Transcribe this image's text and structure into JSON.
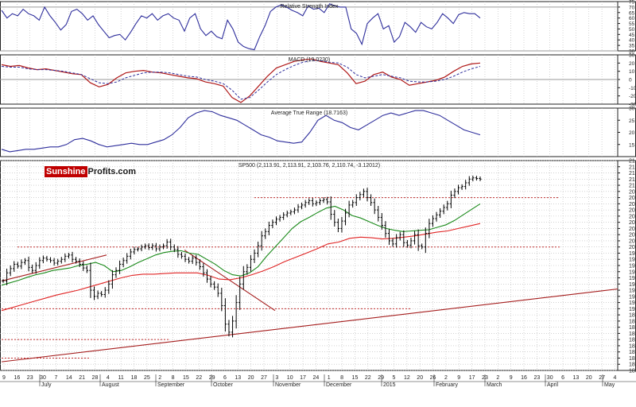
{
  "colors": {
    "rsi": "#2e2e9c",
    "macd": "#b01818",
    "signal": "#2e2e9c",
    "atr": "#2e2e9c",
    "bars": "#000000",
    "ma_short": "#1a8a1a",
    "ma_long": "#e02424",
    "trend": "#a51d1d",
    "level": "#c03030",
    "grid": "#b8b8b8"
  },
  "logo": {
    "part1": "Sunshine",
    "part2": "Profits.com"
  },
  "chart_data": [
    {
      "type": "line",
      "title": "Relative Strength Index",
      "ylim": [
        30,
        75
      ],
      "y_ticks": [
        "75",
        "70",
        "65",
        "60",
        "55",
        "50",
        "45",
        "40",
        "35",
        "30"
      ],
      "series": [
        {
          "values": [
            67,
            60,
            64,
            62,
            68,
            64,
            62,
            58,
            70,
            62,
            56,
            49,
            54,
            66,
            68,
            64,
            58,
            62,
            54,
            48,
            42,
            44,
            45,
            40,
            47,
            55,
            62,
            60,
            64,
            58,
            62,
            64,
            60,
            58,
            48,
            60,
            64,
            50,
            44,
            48,
            43,
            41,
            58,
            50,
            38,
            34,
            32,
            31,
            43,
            53,
            66,
            70,
            72,
            70,
            67,
            65,
            62,
            71,
            68,
            69,
            65,
            73,
            71,
            70,
            70,
            50,
            46,
            36,
            55,
            60,
            64,
            50,
            53,
            38,
            43,
            56,
            52,
            47,
            56,
            52,
            50,
            56,
            64,
            60,
            55,
            63,
            65,
            64,
            64,
            60
          ]
        }
      ]
    },
    {
      "type": "line",
      "title": "MACD (19.0230)",
      "ylim": [
        -30,
        30
      ],
      "y_ticks": [
        "30",
        "20",
        "10",
        "0",
        "-10",
        "-20",
        "-30"
      ],
      "series": [
        {
          "values": [
            18,
            16,
            17,
            14,
            12,
            13,
            11,
            9,
            7,
            6,
            -4,
            -9,
            -6,
            2,
            8,
            10,
            11,
            9,
            8,
            6,
            4,
            2,
            1,
            -3,
            -5,
            -8,
            -22,
            -28,
            -20,
            -8,
            4,
            14,
            18,
            22,
            24,
            25,
            22,
            20,
            18,
            8,
            -5,
            -2,
            6,
            9,
            3,
            0,
            -7,
            -5,
            -3,
            -1,
            3,
            10,
            16,
            19,
            20
          ]
        },
        {
          "values": [
            16,
            15,
            15,
            13,
            12,
            12,
            11,
            10,
            8,
            6,
            1,
            -4,
            -5,
            -3,
            2,
            5,
            8,
            9,
            9,
            8,
            6,
            4,
            3,
            0,
            -2,
            -5,
            -13,
            -24,
            -22,
            -13,
            -3,
            6,
            12,
            17,
            21,
            23,
            23,
            21,
            20,
            15,
            6,
            2,
            4,
            6,
            4,
            2,
            -2,
            -3,
            -3,
            -2,
            0,
            4,
            9,
            13,
            16
          ]
        }
      ]
    },
    {
      "type": "line",
      "title": "Average True Range (18.7163)",
      "ylim": [
        10,
        30
      ],
      "y_ticks": [
        "30",
        "25",
        "20",
        "15"
      ],
      "series": [
        {
          "values": [
            13,
            12,
            12.5,
            13,
            13,
            13.5,
            14,
            14,
            15,
            17,
            17.5,
            16.5,
            15,
            14,
            14.5,
            15,
            15.5,
            15,
            15,
            16,
            17,
            19,
            22,
            26,
            28,
            29,
            28.5,
            27,
            26,
            25,
            23,
            21,
            19,
            18,
            16.5,
            16,
            15.5,
            16,
            20,
            25,
            27,
            25,
            24,
            22,
            21,
            23,
            25,
            27,
            28,
            27,
            28,
            29,
            29,
            28,
            27,
            25,
            23,
            21,
            20,
            19
          ]
        }
      ]
    },
    {
      "type": "bar",
      "title": "SP500 (2,113.91, 2,113.91, 2,103.76, 2,110.74, -3.12012)",
      "ylim": [
        1800,
        2140
      ],
      "y_ticks": [
        "2140",
        "2130",
        "2120",
        "2110",
        "2100",
        "2090",
        "2080",
        "2070",
        "2060",
        "2050",
        "2040",
        "2030",
        "2020",
        "2010",
        "2000",
        "1990",
        "1980",
        "1970",
        "1960",
        "1950",
        "1940",
        "1930",
        "1920",
        "1910",
        "1900",
        "1890",
        "1880",
        "1870",
        "1860",
        "1850",
        "1840",
        "1830",
        "1820",
        "1810",
        "1800"
      ],
      "x_labels": [
        "9",
        "16",
        "23",
        "30",
        "7",
        "14",
        "21",
        "28",
        "4",
        "11",
        "18",
        "25",
        "2",
        "8",
        "15",
        "22",
        "29",
        "6",
        "13",
        "20",
        "27",
        "3",
        "10",
        "17",
        "24",
        "1",
        "8",
        "15",
        "22",
        "29",
        "5",
        "12",
        "20",
        "26",
        "2",
        "9",
        "17",
        "23",
        "2",
        "9",
        "16",
        "23",
        "30",
        "6",
        "13",
        "20",
        "27",
        "4"
      ],
      "month_labels": [
        "July",
        "August",
        "September",
        "October",
        "November",
        "December",
        "2015",
        "February",
        "March",
        "April",
        "May"
      ],
      "levels": [
        2080,
        2000,
        1900,
        1850,
        1820
      ],
      "closes": [
        1945,
        1958,
        1965,
        1972,
        1969,
        1975,
        1978,
        1967,
        1962,
        1970,
        1978,
        1982,
        1980,
        1978,
        1974,
        1977,
        1980,
        1985,
        1987,
        1980,
        1977,
        1972,
        1966,
        1962,
        1930,
        1920,
        1925,
        1923,
        1930,
        1940,
        1955,
        1962,
        1972,
        1978,
        1985,
        1992,
        1996,
        1997,
        2000,
        2002,
        1999,
        2002,
        1997,
        2000,
        2002,
        2008,
        2000,
        1996,
        1988,
        1985,
        1980,
        1977,
        1982,
        1975,
        1968,
        1958,
        1948,
        1940,
        1935,
        1925,
        1905,
        1875,
        1862,
        1880,
        1910,
        1940,
        1960,
        1967,
        1980,
        1990,
        2002,
        2018,
        2025,
        2035,
        2040,
        2045,
        2048,
        2052,
        2055,
        2057,
        2060,
        2065,
        2068,
        2072,
        2075,
        2070,
        2072,
        2075,
        2077,
        2073,
        2053,
        2040,
        2030,
        2042,
        2055,
        2068,
        2072,
        2080,
        2085,
        2090,
        2080,
        2072,
        2060,
        2048,
        2035,
        2022,
        2010,
        2005,
        2015,
        2020,
        2007,
        2003,
        2010,
        2020,
        2002,
        2000,
        2022,
        2038,
        2046,
        2052,
        2058,
        2064,
        2070,
        2084,
        2090,
        2096,
        2098,
        2104,
        2110,
        2112,
        2111,
        2110
      ],
      "ma_short": [
        1938,
        1942,
        1946,
        1951,
        1955,
        1958,
        1962,
        1964,
        1966,
        1970,
        1972,
        1975,
        1970,
        1960,
        1962,
        1968,
        1975,
        1981,
        1987,
        1991,
        1993,
        1994,
        1990,
        1988,
        1980,
        1972,
        1962,
        1955,
        1953,
        1958,
        1968,
        1985,
        2000,
        2015,
        2030,
        2041,
        2048,
        2056,
        2063,
        2066,
        2060,
        2051,
        2047,
        2041,
        2035,
        2030,
        2027,
        2025,
        2026,
        2027,
        2028,
        2032,
        2036,
        2043,
        2052,
        2061,
        2070
      ],
      "ma_long": [
        1897,
        1902,
        1907,
        1912,
        1917,
        1922,
        1926,
        1930,
        1935,
        1940,
        1945,
        1950,
        1954,
        1956,
        1956,
        1957,
        1958,
        1958,
        1958,
        1954,
        1948,
        1947,
        1950,
        1955,
        1961,
        1968,
        1976,
        1983,
        1990,
        1997,
        2005,
        2008,
        2014,
        2016,
        2015,
        2013,
        2014,
        2016,
        2018,
        2021,
        2024,
        2026,
        2030,
        2034,
        2038
      ],
      "trendlines": [
        {
          "values": [
            1945,
            1987
          ]
        },
        {
          "values": [
            1995,
            1897
          ]
        },
        {
          "values": [
            1814,
            1932
          ]
        }
      ]
    }
  ]
}
